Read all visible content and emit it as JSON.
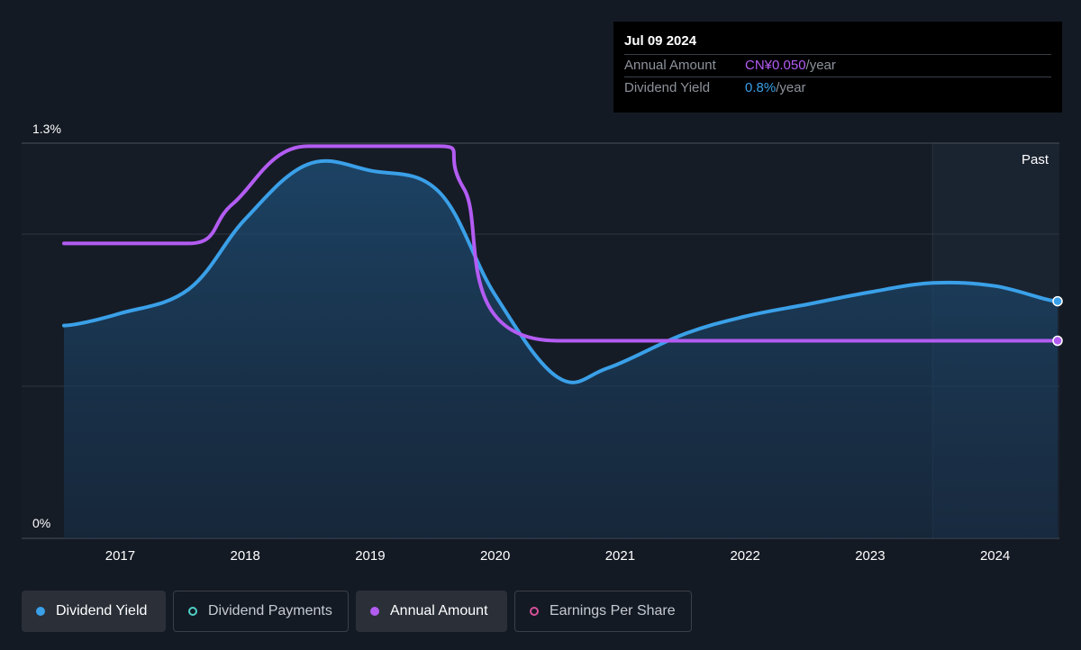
{
  "chart_data": {
    "type": "line",
    "y_axis": {
      "ticks": [
        "1.3%",
        "0%"
      ],
      "ylim": [
        0,
        1.3
      ],
      "unit": "%"
    },
    "x_axis": {
      "tick_labels": [
        "2017",
        "2018",
        "2019",
        "2020",
        "2021",
        "2022",
        "2023",
        "2024"
      ],
      "xlim": [
        2016.55,
        2024.5
      ]
    },
    "past_label": "Past",
    "past_start_year": 2023.5,
    "grid": true,
    "series": [
      {
        "name": "Dividend Yield",
        "color": "#3aa0e8",
        "filled": true,
        "x": [
          2016.55,
          2017.0,
          2017.55,
          2018.0,
          2018.5,
          2019.0,
          2019.55,
          2020.0,
          2020.5,
          2020.9,
          2021.5,
          2022.0,
          2022.5,
          2023.0,
          2023.5,
          2024.0,
          2024.5
        ],
        "y": [
          0.7,
          0.74,
          0.82,
          1.05,
          1.23,
          1.21,
          1.14,
          0.8,
          0.53,
          0.56,
          0.67,
          0.73,
          0.77,
          0.81,
          0.84,
          0.83,
          0.78
        ]
      },
      {
        "name": "Annual Amount",
        "color": "#b35cf2",
        "filled": false,
        "x": [
          2016.55,
          2017.55,
          2017.9,
          2018.5,
          2019.55,
          2019.75,
          2020.5,
          2024.5
        ],
        "y": [
          0.97,
          0.97,
          1.1,
          1.29,
          1.29,
          1.15,
          0.65,
          0.65
        ]
      }
    ]
  },
  "tooltip": {
    "date": "Jul 09 2024",
    "annual_label": "Annual Amount",
    "annual_value": "CN¥0.050",
    "annual_unit": "/year",
    "yield_label": "Dividend Yield",
    "yield_value": "0.8%",
    "yield_unit": "/year"
  },
  "legend": [
    {
      "label": "Dividend Yield",
      "active": true,
      "marker": "filled",
      "color": "#3aa0e8"
    },
    {
      "label": "Dividend Payments",
      "active": false,
      "marker": "ring",
      "color": "#4fd1c5"
    },
    {
      "label": "Annual Amount",
      "active": true,
      "marker": "filled",
      "color": "#b35cf2"
    },
    {
      "label": "Earnings Per Share",
      "active": false,
      "marker": "ring",
      "color": "#d9509a"
    }
  ]
}
